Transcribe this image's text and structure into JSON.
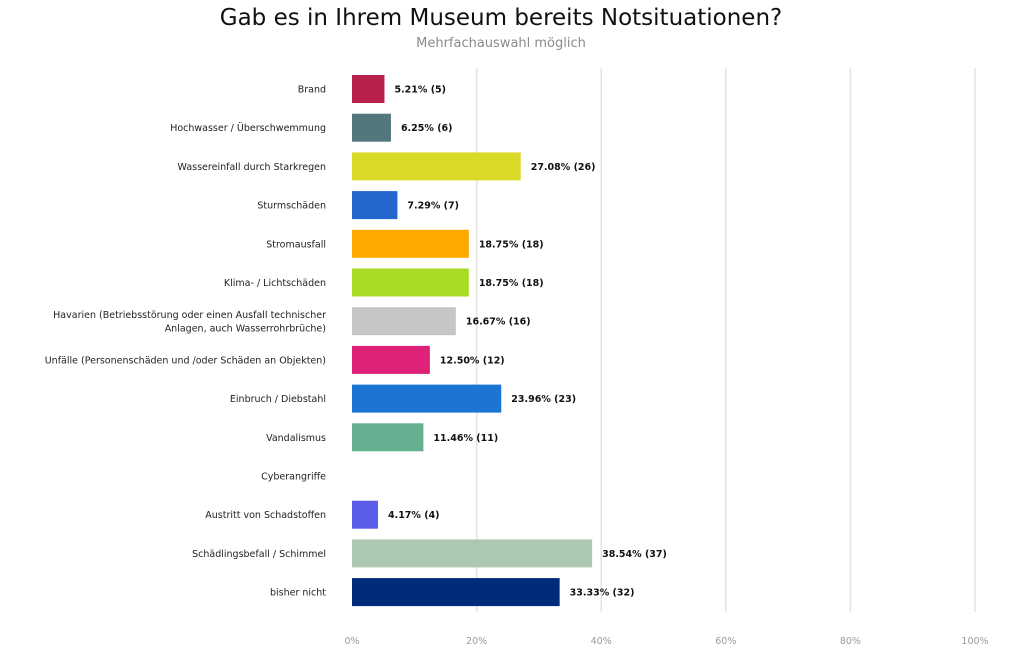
{
  "chart_data": {
    "type": "bar",
    "orientation": "horizontal",
    "title": "Gab es in Ihrem Museum bereits Notsituationen?",
    "subtitle": "Mehrfachauswahl möglich",
    "categories": [
      "Brand",
      "Hochwasser / Überschwemmung",
      "Wassereinfall durch Starkregen",
      "Sturmschäden",
      "Stromausfall",
      "Klima- / Lichtschäden",
      "Havarien (Betriebsstörung oder einen Ausfall technischer Anlagen, auch Wasserrohrbrüche)",
      "Unfälle (Personenschäden und /oder Schäden an Objekten)",
      "Einbruch / Diebstahl",
      "Vandalismus",
      "Cyberangriffe",
      "Austritt von Schadstoffen",
      "Schädlingsbefall / Schimmel",
      "bisher nicht"
    ],
    "category_lines": [
      [
        "Brand"
      ],
      [
        "Hochwasser / Überschwemmung"
      ],
      [
        "Wassereinfall durch Starkregen"
      ],
      [
        "Sturmschäden"
      ],
      [
        "Stromausfall"
      ],
      [
        "Klima- / Lichtschäden"
      ],
      [
        "Havarien (Betriebsstörung oder einen Ausfall technischer",
        "Anlagen, auch Wasserrohrbrüche)"
      ],
      [
        "Unfälle (Personenschäden und /oder Schäden an Objekten)"
      ],
      [
        "Einbruch / Diebstahl"
      ],
      [
        "Vandalismus"
      ],
      [
        "Cyberangriffe"
      ],
      [
        "Austritt von Schadstoffen"
      ],
      [
        "Schädlingsbefall / Schimmel"
      ],
      [
        "bisher nicht"
      ]
    ],
    "values": [
      5.21,
      6.25,
      27.08,
      7.29,
      18.75,
      18.75,
      16.67,
      12.5,
      23.96,
      11.46,
      0,
      4.17,
      38.54,
      33.33
    ],
    "counts": [
      5,
      6,
      26,
      7,
      18,
      18,
      16,
      12,
      23,
      11,
      0,
      4,
      37,
      32
    ],
    "value_labels": [
      "5.21% (5)",
      "6.25% (6)",
      "27.08% (26)",
      "7.29% (7)",
      "18.75% (18)",
      "18.75% (18)",
      "16.67% (16)",
      "12.50% (12)",
      "23.96% (23)",
      "11.46% (11)",
      "",
      "4.17% (4)",
      "38.54% (37)",
      "33.33% (32)"
    ],
    "colors": [
      "#b8214a",
      "#52787e",
      "#d8da27",
      "#2366cc",
      "#ffa900",
      "#a8db26",
      "#c6c6c6",
      "#dd2277",
      "#1c74d3",
      "#64b090",
      "#cccccc",
      "#5b5de8",
      "#adc8b0",
      "#002a7a"
    ],
    "xlim": [
      0,
      100
    ],
    "x_ticks": [
      0,
      20,
      40,
      60,
      80,
      100
    ],
    "x_tick_labels": [
      "0%",
      "20%",
      "40%",
      "60%",
      "80%",
      "100%"
    ],
    "grid": true,
    "legend": "none"
  }
}
